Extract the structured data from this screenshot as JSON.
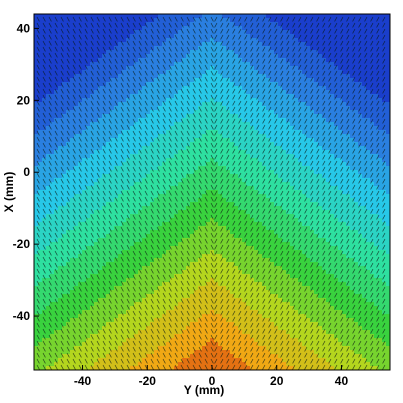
{
  "chart_data": {
    "type": "heatmap",
    "title": "",
    "xlabel": "Y (mm)",
    "ylabel": "X (mm)",
    "xlim": [
      -55,
      55
    ],
    "ylim": [
      -55,
      44
    ],
    "xticks": [
      -40,
      -20,
      0,
      20,
      40
    ],
    "yticks": [
      40,
      20,
      0,
      -20,
      -40
    ],
    "x_tick_labels": [
      "-40",
      "-20",
      "0",
      "20",
      "40"
    ],
    "y_tick_labels": [
      "40",
      "20",
      "0",
      "-20",
      "-40"
    ],
    "overlay": "vector field (black arrows)",
    "colormap": [
      "#1a3ecc",
      "#2a7fe0",
      "#27c8e8",
      "#2ee0a0",
      "#39d23e",
      "#b4d61e",
      "#f0a814",
      "#d83a10"
    ],
    "field_description_values": {
      "min_region": "top corners",
      "max_region": "bottom center (Y=0, X=-55)"
    },
    "grid": false,
    "legend": "none"
  }
}
